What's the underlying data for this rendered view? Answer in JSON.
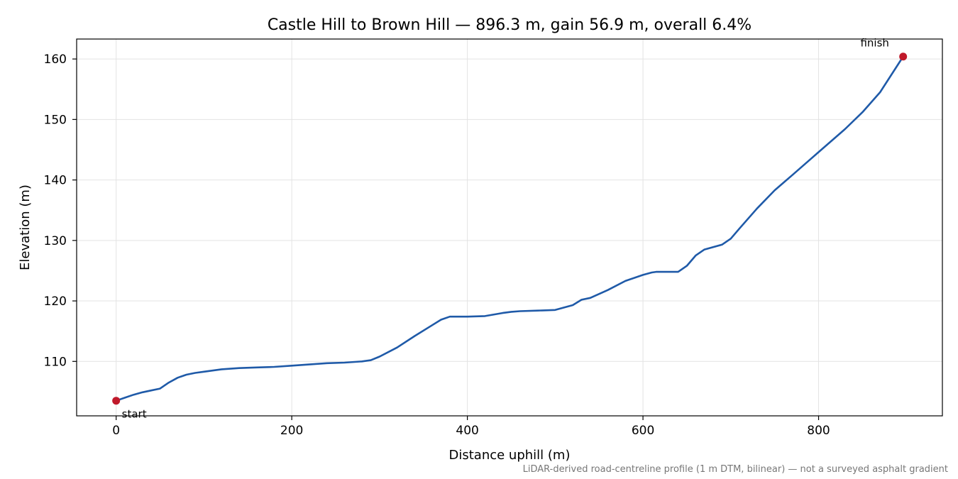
{
  "chart_data": {
    "type": "line",
    "title": "Castle Hill to Brown Hill — 896.3 m, gain 56.9 m, overall 6.4%",
    "xlabel": "Distance uphill (m)",
    "ylabel": "Elevation (m)",
    "xlim": [
      -45,
      941
    ],
    "ylim": [
      101,
      163.3
    ],
    "xticks": [
      0,
      200,
      400,
      600,
      800
    ],
    "yticks": [
      110,
      120,
      130,
      140,
      150,
      160
    ],
    "grid": true,
    "line_color": "#1f5aa8",
    "marker_color": "#c0192a",
    "series": [
      {
        "x": [
          0,
          10,
          20,
          30,
          40,
          50,
          60,
          70,
          80,
          90,
          100,
          120,
          140,
          160,
          180,
          200,
          220,
          240,
          260,
          280,
          290,
          300,
          320,
          340,
          360,
          370,
          380,
          400,
          420,
          440,
          450,
          460,
          480,
          500,
          520,
          530,
          540,
          560,
          580,
          600,
          610,
          615,
          630,
          640,
          650,
          660,
          670,
          690,
          700,
          710,
          730,
          750,
          770,
          800,
          830,
          850,
          870,
          896.3
        ],
        "y": [
          103.5,
          104,
          104.5,
          104.9,
          105.2,
          105.5,
          106.5,
          107.3,
          107.8,
          108.1,
          108.3,
          108.7,
          108.9,
          109.0,
          109.1,
          109.3,
          109.5,
          109.7,
          109.8,
          110.0,
          110.2,
          110.8,
          112.3,
          114.2,
          116.0,
          116.9,
          117.4,
          117.4,
          117.5,
          118.0,
          118.2,
          118.3,
          118.4,
          118.5,
          119.3,
          120.2,
          120.5,
          121.8,
          123.3,
          124.3,
          124.7,
          124.8,
          124.8,
          124.8,
          125.8,
          127.5,
          128.5,
          129.3,
          130.3,
          132.0,
          135.3,
          138.3,
          140.8,
          144.6,
          148.4,
          151.2,
          154.5,
          160.4
        ]
      }
    ],
    "annotations": [
      {
        "text": "start",
        "x": 0,
        "y": 103.5
      },
      {
        "text": "finish",
        "x": 896.3,
        "y": 160.4
      }
    ],
    "footnote": "LiDAR-derived road-centreline profile (1 m DTM, bilinear) — not a surveyed asphalt gradient"
  }
}
